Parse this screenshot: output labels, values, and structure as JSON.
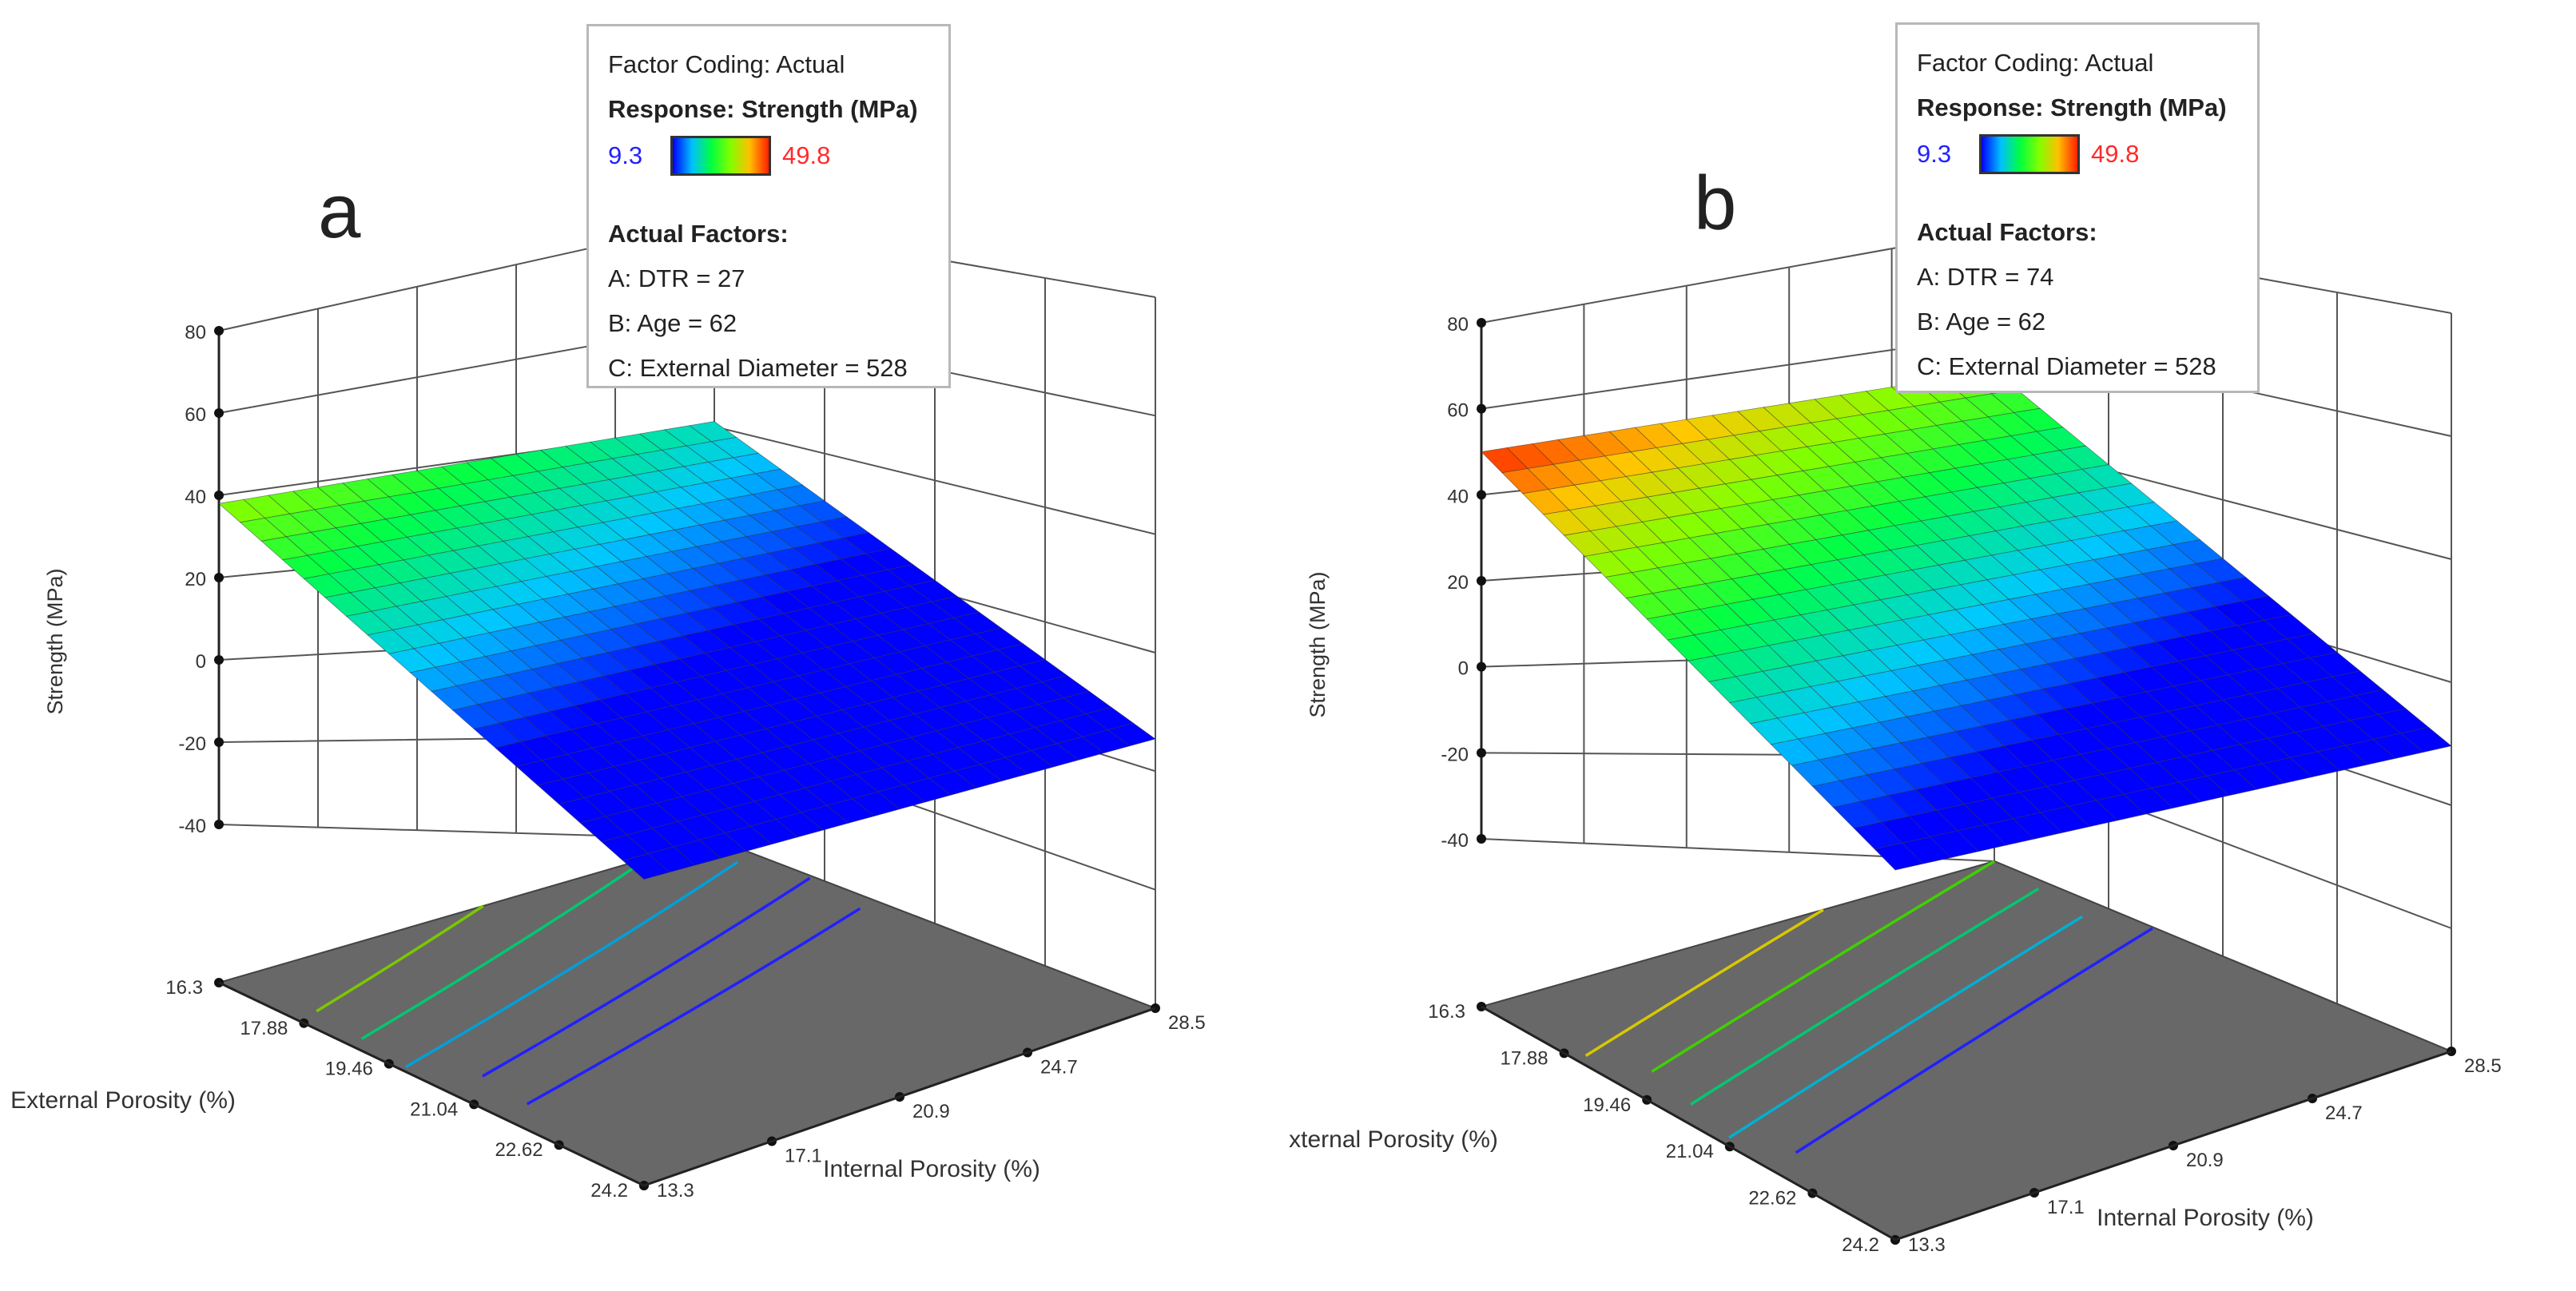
{
  "panels": [
    {
      "letter": "a",
      "legend": {
        "coding": "Factor Coding: Actual",
        "response": "Response: Strength (MPa)",
        "scale_min": "9.3",
        "scale_max": "49.8",
        "actual_heading": "Actual Factors:",
        "factors": [
          "A: DTR = 27",
          "B: Age = 62",
          "C: External Diameter = 528"
        ]
      }
    },
    {
      "letter": "b",
      "legend": {
        "coding": "Factor Coding: Actual",
        "response": "Response: Strength (MPa)",
        "scale_min": "9.3",
        "scale_max": "49.8",
        "actual_heading": "Actual Factors:",
        "factors": [
          "A: DTR = 74",
          "B: Age = 62",
          "C: External Diameter = 528"
        ]
      }
    }
  ],
  "chart_data": [
    {
      "type": "surface",
      "panel": "a",
      "zlabel": "Strength (MPa)",
      "xlabel": "External Porosity (%)",
      "ylabel": "Internal Porosity (%)",
      "z_ticks": [
        "80",
        "60",
        "40",
        "20",
        "0",
        "-20",
        "-40"
      ],
      "z_range": [
        -40,
        80
      ],
      "x_ticks": [
        "16.3",
        "17.88",
        "19.46",
        "21.04",
        "22.62",
        "24.2"
      ],
      "x_range": [
        16.3,
        24.2
      ],
      "y_ticks": [
        "13.3",
        "17.1",
        "20.9",
        "24.7",
        "28.5"
      ],
      "y_range": [
        13.3,
        28.5
      ],
      "color_range": [
        9.3,
        49.8
      ],
      "surface_corners": {
        "ext_min_int_min": 38,
        "ext_max_int_min": -4,
        "ext_min_int_max": 23,
        "ext_max_int_max": -13
      },
      "contours": [
        {
          "level": 30,
          "color": "#7ac800"
        },
        {
          "level": 25,
          "color": "#00c870"
        },
        {
          "level": 20,
          "color": "#00a0d8"
        },
        {
          "level": 15,
          "color": "#2020ff"
        },
        {
          "level": 10,
          "color": "#2020ff"
        }
      ]
    },
    {
      "type": "surface",
      "panel": "b",
      "zlabel": "Strength (MPa)",
      "xlabel": "External Porosity (%)",
      "ylabel": "Internal Porosity (%)",
      "z_ticks": [
        "80",
        "60",
        "40",
        "20",
        "0",
        "-20",
        "-40"
      ],
      "z_range": [
        -40,
        80
      ],
      "x_ticks": [
        "16.3",
        "17.88",
        "19.46",
        "21.04",
        "22.62",
        "24.2"
      ],
      "x_range": [
        16.3,
        24.2
      ],
      "y_ticks": [
        "13.3",
        "17.1",
        "20.9",
        "24.7",
        "28.5"
      ],
      "y_range": [
        13.3,
        28.5
      ],
      "color_range": [
        9.3,
        49.8
      ],
      "surface_corners": {
        "ext_min_int_min": 50,
        "ext_max_int_min": 7,
        "ext_min_int_max": 35,
        "ext_max_int_max": -8
      },
      "contours": [
        {
          "level": 40,
          "color": "#d8c800"
        },
        {
          "level": 35,
          "color": "#40d000"
        },
        {
          "level": 30,
          "color": "#00c870"
        },
        {
          "level": 25,
          "color": "#00b0d0"
        },
        {
          "level": 20,
          "color": "#2020ff"
        }
      ]
    }
  ]
}
